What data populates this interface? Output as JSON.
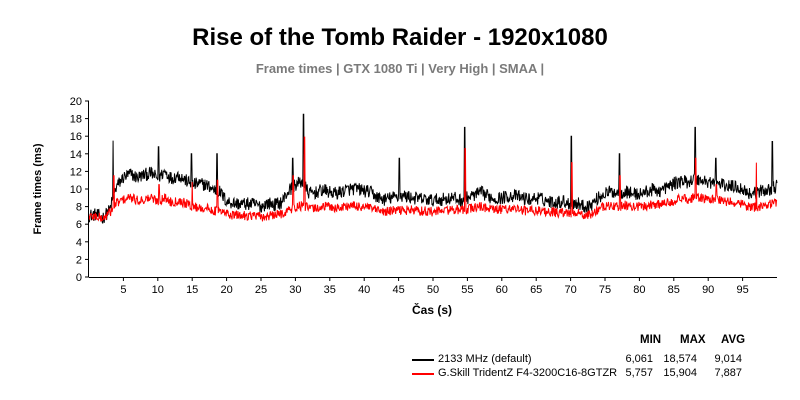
{
  "title": "Rise of the Tomb Raider - 1920x1080",
  "subtitle": "Frame times | GTX 1080 Ti | Very High | SMAA |",
  "chart_data": {
    "type": "line",
    "xlabel": "Čas (s)",
    "ylabel": "Frame times (ms)",
    "xlim": [
      0,
      100
    ],
    "ylim": [
      0,
      20
    ],
    "x_ticks": [
      5,
      10,
      15,
      20,
      25,
      30,
      35,
      40,
      45,
      50,
      55,
      60,
      65,
      70,
      75,
      80,
      85,
      90,
      95
    ],
    "y_ticks": [
      0,
      2,
      4,
      6,
      8,
      10,
      12,
      14,
      16,
      18,
      20
    ],
    "x_tick_labels": [
      "5",
      "10",
      "15",
      "20",
      "25",
      "30",
      "35",
      "40",
      "45",
      "50",
      "55",
      "60",
      "65",
      "70",
      "75",
      "80",
      "85",
      "90",
      "95"
    ],
    "y_tick_labels": [
      "0",
      "2",
      "4",
      "6",
      "8",
      "10",
      "12",
      "14",
      "16",
      "18",
      "20"
    ],
    "grid": false,
    "legend_position": "bottom-right",
    "stats_headers": [
      "MIN",
      "MAX",
      "AVG"
    ],
    "series": [
      {
        "name": "2133 MHz (default)",
        "color": "#000000",
        "stats": [
          "6,061",
          "18,574",
          "9,014"
        ],
        "x": [
          0,
          1,
          2,
          3,
          4,
          5,
          6,
          7,
          8,
          9,
          10,
          11,
          12,
          13,
          14,
          15,
          16,
          17,
          18,
          19,
          20,
          21,
          22,
          23,
          24,
          25,
          26,
          27,
          28,
          29,
          30,
          31,
          32,
          33,
          34,
          35,
          36,
          37,
          38,
          39,
          40,
          41,
          42,
          43,
          44,
          45,
          46,
          47,
          48,
          49,
          50,
          51,
          52,
          53,
          54,
          55,
          56,
          57,
          58,
          59,
          60,
          61,
          62,
          63,
          64,
          65,
          66,
          67,
          68,
          69,
          70,
          71,
          72,
          73,
          74,
          75,
          76,
          77,
          78,
          79,
          80,
          81,
          82,
          83,
          84,
          85,
          86,
          87,
          88,
          89,
          90,
          91,
          92,
          93,
          94,
          95,
          96,
          97,
          98,
          99,
          100
        ],
        "y": [
          7.0,
          7.1,
          6.7,
          7.6,
          10.3,
          11.3,
          11.7,
          11.3,
          11.6,
          11.8,
          11.2,
          12.0,
          11.2,
          11.6,
          11.0,
          10.5,
          10.6,
          10.5,
          10.0,
          9.7,
          8.6,
          8.4,
          8.3,
          8.3,
          8.3,
          8.0,
          8.4,
          8.2,
          8.5,
          9.8,
          10.5,
          10.8,
          9.5,
          9.6,
          9.9,
          9.6,
          9.5,
          9.8,
          10.0,
          10.0,
          9.8,
          9.6,
          9.0,
          8.8,
          9.0,
          9.2,
          9.2,
          9.0,
          8.9,
          8.8,
          8.7,
          8.8,
          8.9,
          9.0,
          8.7,
          9.0,
          9.3,
          9.6,
          9.2,
          8.9,
          9.0,
          9.2,
          9.2,
          9.0,
          8.8,
          9.0,
          8.8,
          8.6,
          8.5,
          8.6,
          8.3,
          8.4,
          8.0,
          8.2,
          9.0,
          9.5,
          9.7,
          9.6,
          9.7,
          9.5,
          9.4,
          9.7,
          9.9,
          9.8,
          10.2,
          10.6,
          10.9,
          10.8,
          11.2,
          11.0,
          10.8,
          10.7,
          10.5,
          10.3,
          10.3,
          10.0,
          9.5,
          9.6,
          9.8,
          10.0,
          10.3
        ],
        "spikes": [
          [
            3.5,
            15.5
          ],
          [
            10.1,
            14.8
          ],
          [
            14.9,
            14.0
          ],
          [
            18.6,
            14.0
          ],
          [
            29.6,
            13.5
          ],
          [
            31.2,
            18.5
          ],
          [
            45.1,
            13.5
          ],
          [
            54.6,
            17.0
          ],
          [
            70.1,
            16.0
          ],
          [
            77.1,
            14.0
          ],
          [
            88.1,
            17.0
          ],
          [
            91.1,
            13.5
          ],
          [
            99.3,
            15.4
          ]
        ]
      },
      {
        "name": "G.Skill TridentZ F4-3200C16-8GTZR",
        "color": "#ff0000",
        "stats": [
          "5,757",
          "15,904",
          "7,887"
        ],
        "x": [
          0,
          1,
          2,
          3,
          4,
          5,
          6,
          7,
          8,
          9,
          10,
          11,
          12,
          13,
          14,
          15,
          16,
          17,
          18,
          19,
          20,
          21,
          22,
          23,
          24,
          25,
          26,
          27,
          28,
          29,
          30,
          31,
          32,
          33,
          34,
          35,
          36,
          37,
          38,
          39,
          40,
          41,
          42,
          43,
          44,
          45,
          46,
          47,
          48,
          49,
          50,
          51,
          52,
          53,
          54,
          55,
          56,
          57,
          58,
          59,
          60,
          61,
          62,
          63,
          64,
          65,
          66,
          67,
          68,
          69,
          70,
          71,
          72,
          73,
          74,
          75,
          76,
          77,
          78,
          79,
          80,
          81,
          82,
          83,
          84,
          85,
          86,
          87,
          88,
          89,
          90,
          91,
          92,
          93,
          94,
          95,
          96,
          97,
          98,
          99,
          100
        ],
        "y": [
          6.9,
          6.9,
          6.6,
          7.3,
          8.4,
          8.8,
          9.0,
          8.7,
          8.8,
          9.0,
          8.6,
          9.0,
          8.5,
          8.7,
          8.4,
          8.0,
          7.9,
          7.8,
          7.6,
          7.4,
          7.2,
          7.0,
          7.0,
          7.0,
          7.0,
          6.8,
          6.9,
          7.0,
          7.2,
          7.6,
          7.9,
          8.1,
          7.8,
          7.8,
          8.0,
          8.0,
          7.8,
          8.0,
          8.1,
          8.0,
          8.0,
          7.8,
          7.5,
          7.4,
          7.5,
          7.6,
          7.6,
          7.6,
          7.5,
          7.5,
          7.4,
          7.5,
          7.6,
          7.7,
          7.5,
          7.7,
          7.9,
          8.0,
          7.8,
          7.6,
          7.7,
          7.8,
          7.8,
          7.6,
          7.5,
          7.6,
          7.5,
          7.4,
          7.3,
          7.3,
          7.2,
          7.2,
          7.0,
          7.1,
          7.7,
          8.0,
          8.1,
          8.0,
          8.2,
          8.0,
          8.0,
          8.1,
          8.3,
          8.2,
          8.5,
          8.7,
          8.9,
          8.8,
          9.1,
          8.9,
          8.8,
          8.8,
          8.6,
          8.5,
          8.5,
          8.3,
          7.9,
          8.0,
          8.1,
          8.3,
          8.5
        ],
        "spikes": [
          [
            3.6,
            11.5
          ],
          [
            10.2,
            10.5
          ],
          [
            15.0,
            10.8
          ],
          [
            18.7,
            11.0
          ],
          [
            29.7,
            11.5
          ],
          [
            31.3,
            15.9
          ],
          [
            54.7,
            14.6
          ],
          [
            70.2,
            13.0
          ],
          [
            77.2,
            11.5
          ],
          [
            88.2,
            13.5
          ],
          [
            91.2,
            10.5
          ],
          [
            97.0,
            13.0
          ]
        ]
      }
    ]
  }
}
